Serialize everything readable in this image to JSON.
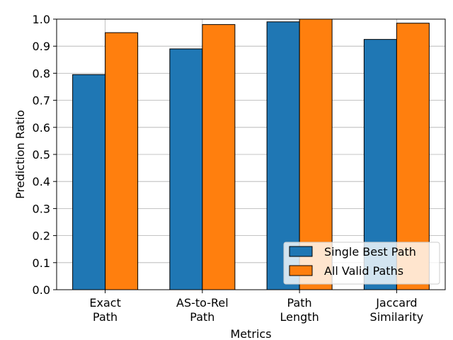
{
  "chart_data": {
    "type": "bar",
    "title": "",
    "xlabel": "Metrics",
    "ylabel": "Prediction Ratio",
    "categories": [
      [
        "Exact",
        "Path"
      ],
      [
        "AS-to-Rel",
        "Path"
      ],
      [
        "Path",
        "Length"
      ],
      [
        "Jaccard",
        "Similarity"
      ]
    ],
    "series": [
      {
        "name": "Single Best Path",
        "color": "#1f77b4",
        "values": [
          0.795,
          0.89,
          0.99,
          0.925
        ]
      },
      {
        "name": "All Valid Paths",
        "color": "#ff7f0e",
        "values": [
          0.95,
          0.98,
          1.0,
          0.985
        ]
      }
    ],
    "ylim": [
      0.0,
      1.0
    ],
    "yticks": [
      "0.0",
      "0.1",
      "0.2",
      "0.3",
      "0.4",
      "0.5",
      "0.6",
      "0.7",
      "0.8",
      "0.9",
      "1.0"
    ],
    "grid": true,
    "legend_position": "lower-right"
  }
}
